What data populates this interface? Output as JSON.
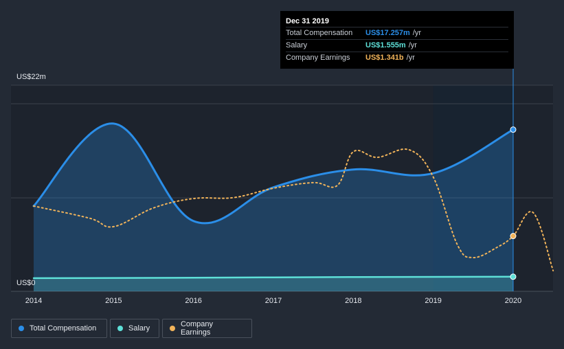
{
  "chart_data": {
    "type": "line",
    "y_axis": {
      "min_label": "US$0",
      "max_label": "US$22m",
      "range": [
        0,
        22
      ]
    },
    "x_ticks": [
      "2014",
      "2015",
      "2016",
      "2017",
      "2018",
      "2019",
      "2020"
    ],
    "forecast_region": {
      "from": 2019.0,
      "to": 2020.0
    },
    "series": [
      {
        "name": "Total Compensation",
        "color": "#2b8ee8",
        "style": "solid-area",
        "points": [
          [
            2014.0,
            9.1
          ],
          [
            2015.0,
            17.9
          ],
          [
            2016.0,
            7.5
          ],
          [
            2017.0,
            11.1
          ],
          [
            2018.0,
            13.0
          ],
          [
            2019.0,
            12.6
          ],
          [
            2020.0,
            17.257
          ]
        ]
      },
      {
        "name": "Salary",
        "color": "#5ee0d8",
        "style": "solid-area",
        "points": [
          [
            2014.0,
            1.4
          ],
          [
            2016.0,
            1.45
          ],
          [
            2018.0,
            1.52
          ],
          [
            2020.0,
            1.555
          ]
        ]
      },
      {
        "name": "Company Earnings",
        "color": "#f2b45a",
        "style": "dotted",
        "points": [
          [
            2014.0,
            9.1
          ],
          [
            2014.7,
            7.8
          ],
          [
            2015.0,
            6.9
          ],
          [
            2015.5,
            8.9
          ],
          [
            2016.0,
            9.9
          ],
          [
            2016.5,
            10.0
          ],
          [
            2017.0,
            11.0
          ],
          [
            2017.5,
            11.6
          ],
          [
            2017.8,
            11.3
          ],
          [
            2018.0,
            14.9
          ],
          [
            2018.3,
            14.3
          ],
          [
            2018.7,
            15.1
          ],
          [
            2019.0,
            12.2
          ],
          [
            2019.3,
            5.0
          ],
          [
            2019.5,
            3.6
          ],
          [
            2019.8,
            4.7
          ],
          [
            2020.0,
            5.9
          ],
          [
            2020.25,
            8.4
          ],
          [
            2020.5,
            2.2
          ]
        ]
      }
    ],
    "tooltip": {
      "date": "Dec 31 2019",
      "rows": [
        {
          "label": "Total Compensation",
          "value": "US$17.257m",
          "unit": "/yr",
          "color": "#2b8ee8"
        },
        {
          "label": "Salary",
          "value": "US$1.555m",
          "unit": "/yr",
          "color": "#5ee0d8"
        },
        {
          "label": "Company Earnings",
          "value": "US$1.341b",
          "unit": "/yr",
          "color": "#f2b45a"
        }
      ]
    },
    "legend": [
      {
        "label": "Total Compensation",
        "color": "#2b8ee8"
      },
      {
        "label": "Salary",
        "color": "#5ee0d8"
      },
      {
        "label": "Company Earnings",
        "color": "#f2b45a"
      }
    ]
  }
}
